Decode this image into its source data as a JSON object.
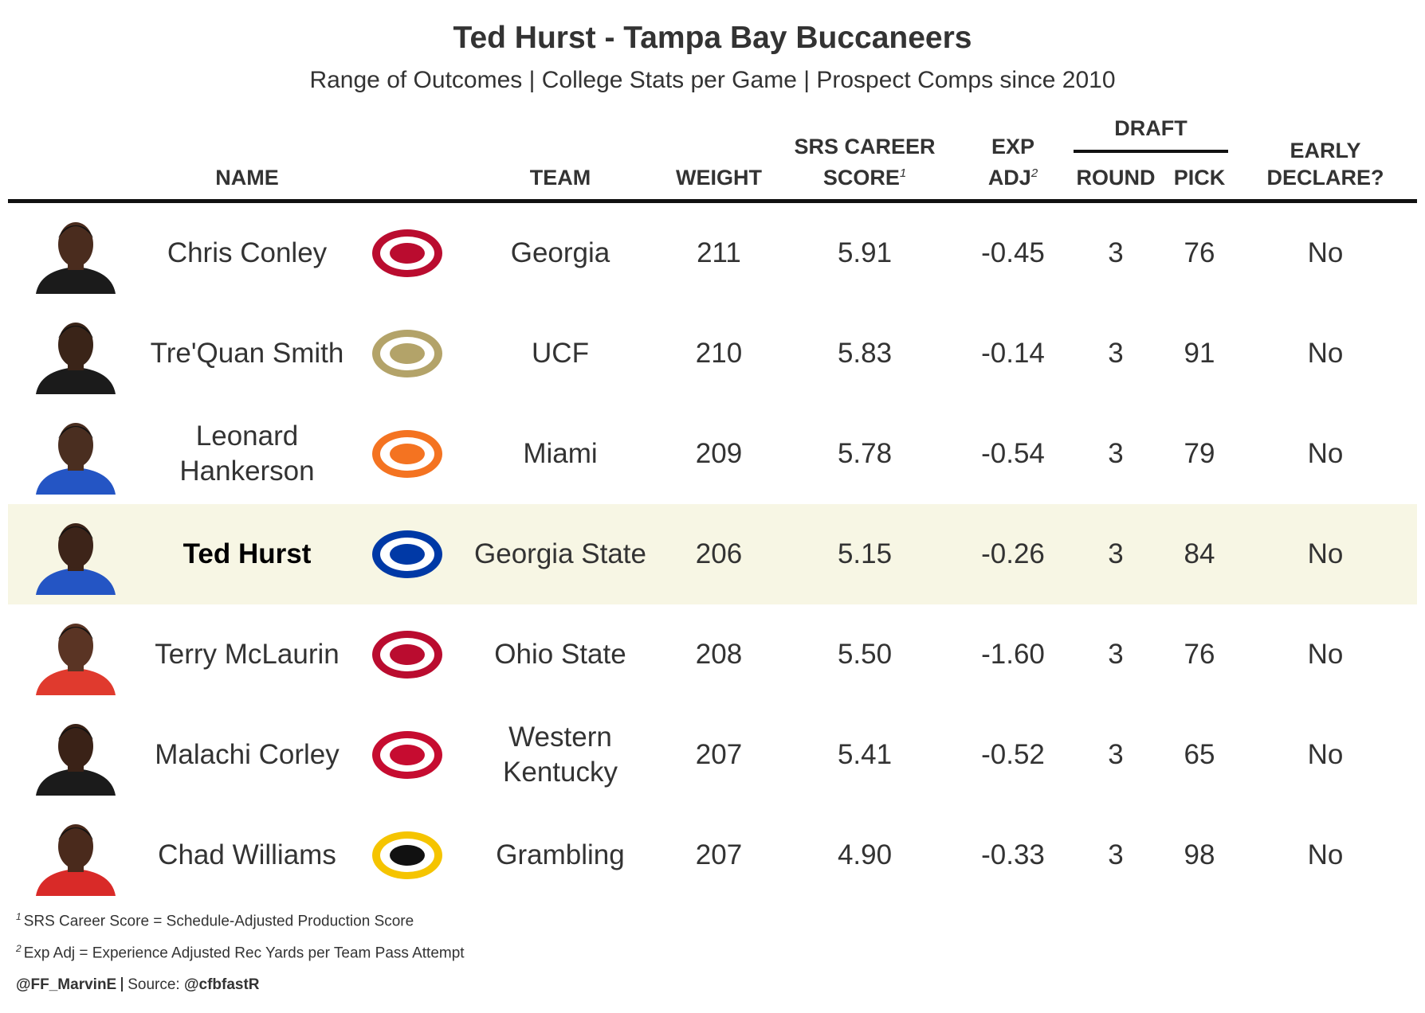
{
  "header": {
    "title": "Ted Hurst - Tampa Bay Buccaneers",
    "subtitle": "Range of Outcomes | College Stats per Game | Prospect Comps since 2010"
  },
  "table": {
    "draft_group": "DRAFT",
    "columns": [
      {
        "key": "name",
        "lines": [
          "NAME"
        ]
      },
      {
        "key": "team",
        "lines": [
          "TEAM"
        ]
      },
      {
        "key": "weight",
        "lines": [
          "WEIGHT"
        ]
      },
      {
        "key": "srs",
        "lines": [
          "SRS CAREER",
          "SCORE"
        ],
        "note": "1"
      },
      {
        "key": "exp",
        "lines": [
          "EXP",
          "ADJ"
        ],
        "note": "2"
      },
      {
        "key": "round",
        "lines": [
          "ROUND"
        ]
      },
      {
        "key": "pick",
        "lines": [
          "PICK"
        ]
      },
      {
        "key": "early",
        "lines": [
          "EARLY",
          "DECLARE?"
        ]
      }
    ],
    "rows": [
      {
        "name": "Chris Conley",
        "team": "Georgia",
        "weight": "211",
        "srs": "5.91",
        "exp": "-0.45",
        "round": "3",
        "pick": "76",
        "early": "No"
      },
      {
        "name": "Tre'Quan Smith",
        "team": "UCF",
        "weight": "210",
        "srs": "5.83",
        "exp": "-0.14",
        "round": "3",
        "pick": "91",
        "early": "No"
      },
      {
        "name": "Leonard Hankerson",
        "team": "Miami",
        "weight": "209",
        "srs": "5.78",
        "exp": "-0.54",
        "round": "3",
        "pick": "79",
        "early": "No"
      },
      {
        "name": "Ted Hurst",
        "team": "Georgia State",
        "weight": "206",
        "srs": "5.15",
        "exp": "-0.26",
        "round": "3",
        "pick": "84",
        "early": "No",
        "highlighted": true
      },
      {
        "name": "Terry McLaurin",
        "team": "Ohio State",
        "weight": "208",
        "srs": "5.50",
        "exp": "-1.60",
        "round": "3",
        "pick": "76",
        "early": "No"
      },
      {
        "name": "Malachi Corley",
        "team": "Western Kentucky",
        "weight": "207",
        "srs": "5.41",
        "exp": "-0.52",
        "round": "3",
        "pick": "65",
        "early": "No"
      },
      {
        "name": "Chad Williams",
        "team": "Grambling",
        "weight": "207",
        "srs": "4.90",
        "exp": "-0.33",
        "round": "3",
        "pick": "98",
        "early": "No"
      }
    ]
  },
  "footnotes": [
    {
      "mark": "1",
      "text": "SRS Career Score = Schedule-Adjusted Production Score"
    },
    {
      "mark": "2",
      "text": "Exp Adj = Experience Adjusted Rec Yards per Team Pass Attempt"
    }
  ],
  "credit": {
    "author": "@FF_MarvinE",
    "source_label": "Source:",
    "source": "@cfbfastR"
  }
}
